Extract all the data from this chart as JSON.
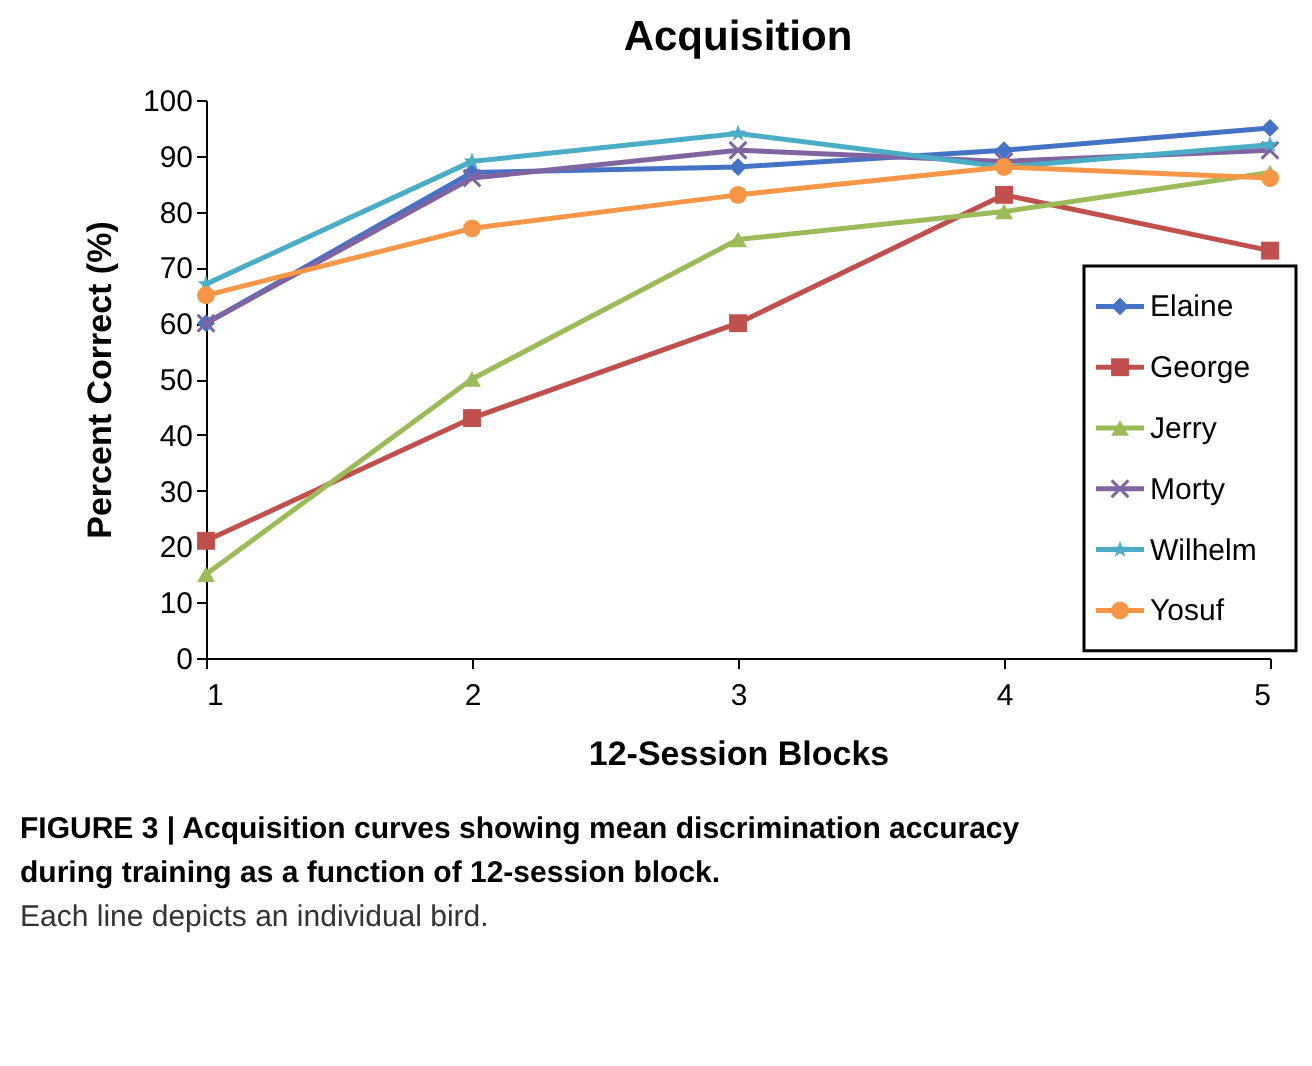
{
  "chart_data": {
    "type": "line",
    "title": "Acquisition",
    "xlabel": "12-Session Blocks",
    "ylabel": "Percent Correct (%)",
    "x": [
      1,
      2,
      3,
      4,
      5
    ],
    "xlim": [
      1,
      5
    ],
    "xticks": [
      1,
      2,
      3,
      4,
      5
    ],
    "ylim": [
      0,
      100
    ],
    "yticks": [
      0,
      10,
      20,
      30,
      40,
      50,
      60,
      70,
      80,
      90,
      100
    ],
    "grid": false,
    "legend": "right",
    "line_style": "solid",
    "series": [
      {
        "name": "Elaine",
        "color": "#4472c4",
        "marker": "diamond",
        "values": [
          60,
          87,
          88,
          91,
          95
        ]
      },
      {
        "name": "George",
        "color": "#c0504d",
        "marker": "square",
        "values": [
          21,
          43,
          60,
          83,
          73
        ]
      },
      {
        "name": "Jerry",
        "color": "#9bbb59",
        "marker": "triangle",
        "values": [
          15,
          50,
          75,
          80,
          87
        ]
      },
      {
        "name": "Morty",
        "color": "#8064a2",
        "marker": "cross",
        "values": [
          60,
          86,
          91,
          89,
          91
        ]
      },
      {
        "name": "Wilhelm",
        "color": "#4bacc6",
        "marker": "star",
        "values": [
          67,
          89,
          94,
          88,
          92
        ]
      },
      {
        "name": "Yosuf",
        "color": "#f79646",
        "marker": "circle",
        "values": [
          65,
          77,
          83,
          88,
          86
        ]
      }
    ],
    "annotations": [
      "FIGURE 3 | Acquisition curves showing mean discrimination accuracy during training as a function of 12-session block.",
      "Each line depicts an individual bird."
    ]
  }
}
